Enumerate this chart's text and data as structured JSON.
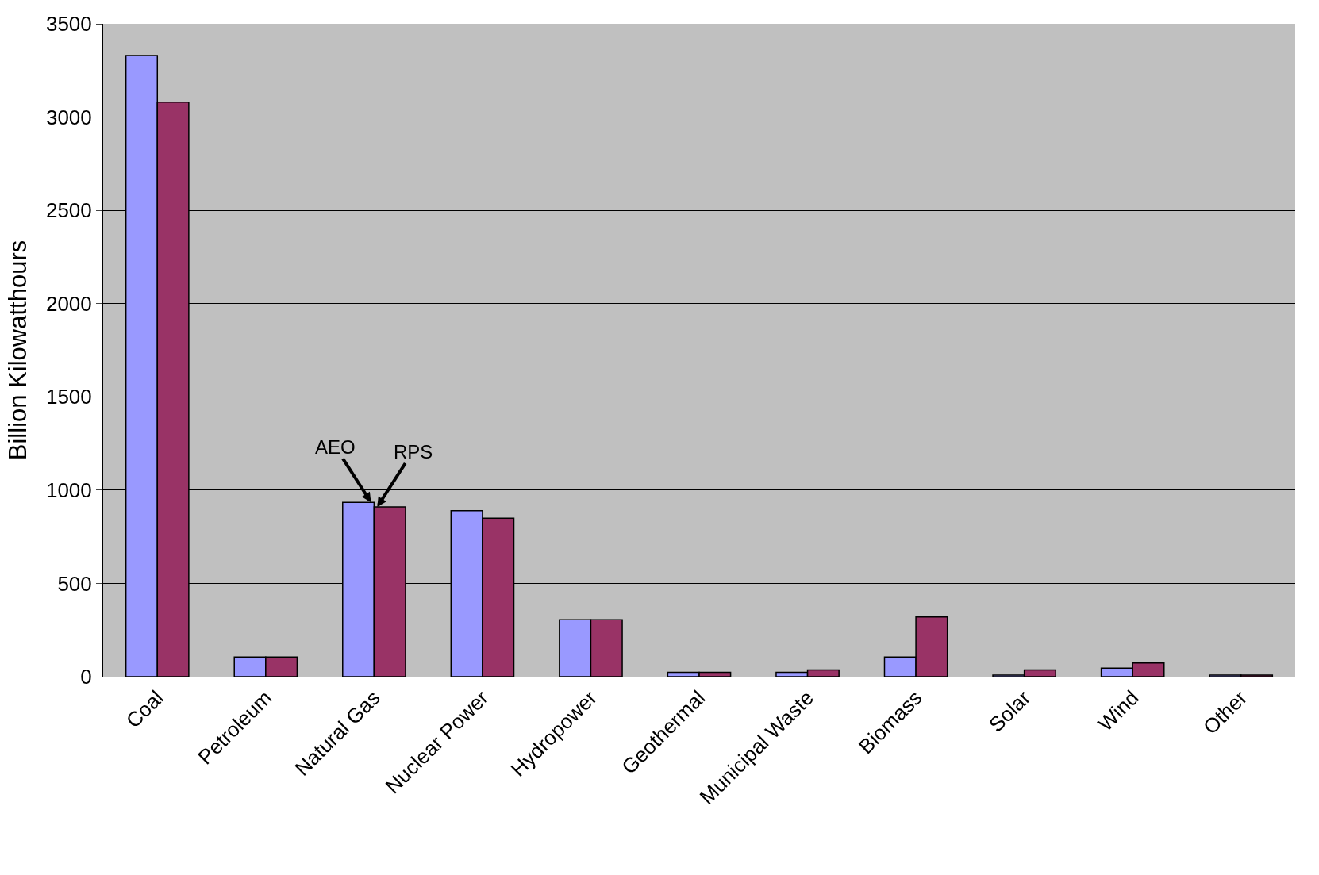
{
  "chart_data": {
    "type": "bar",
    "ylabel": "Billion Kilowatthours",
    "categories": [
      "Coal",
      "Petroleum",
      "Natural Gas",
      "Nuclear Power",
      "Hydropower",
      "Geothermal",
      "Municipal Waste",
      "Biomass",
      "Solar",
      "Wind",
      "Other"
    ],
    "series": [
      {
        "color": "#9999ff",
        "values": [
          3330,
          105,
          935,
          890,
          305,
          23,
          23,
          105,
          9,
          46,
          9
        ]
      },
      {
        "color": "#993366",
        "values": [
          3080,
          105,
          910,
          850,
          305,
          23,
          36,
          320,
          36,
          73,
          9
        ]
      }
    ],
    "annotations": [
      {
        "text": "AEO",
        "x": "Natural Gas",
        "y": 935
      },
      {
        "text": "RPS",
        "x": "Natural Gas",
        "y": 910
      }
    ],
    "ylim": [
      0,
      3500
    ],
    "yticks": [
      0,
      500,
      1000,
      1500,
      2000,
      2500,
      3000,
      3500
    ],
    "grid": "y",
    "legend": false
  }
}
